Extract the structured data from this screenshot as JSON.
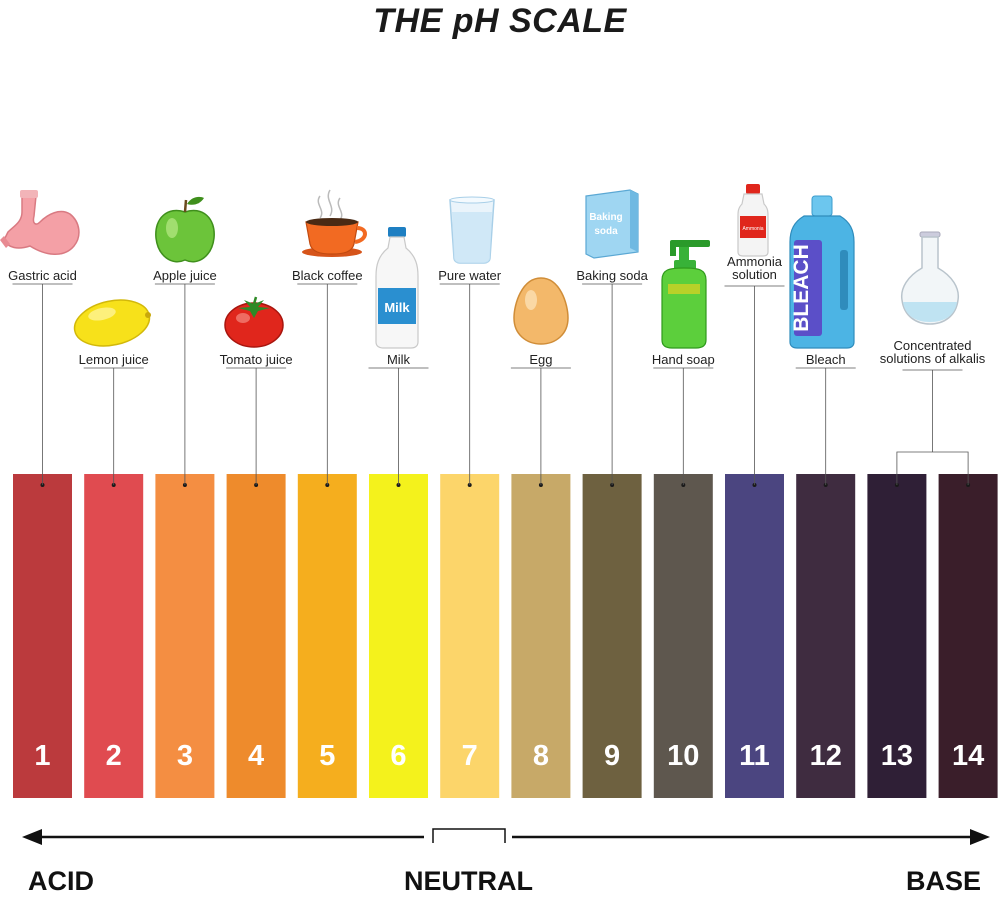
{
  "title": "THE pH SCALE",
  "chart_data": {
    "type": "bar",
    "categories": [
      "1",
      "2",
      "3",
      "4",
      "5",
      "6",
      "7",
      "8",
      "9",
      "10",
      "11",
      "12",
      "13",
      "14"
    ],
    "colors": [
      "#bb3a3d",
      "#e04b50",
      "#f48e42",
      "#ee8b2c",
      "#f5ae1e",
      "#f4f21c",
      "#fcd56a",
      "#c7a968",
      "#6e6140",
      "#5e574e",
      "#4b4580",
      "#3f2c40",
      "#2f1f36",
      "#3a1e2a"
    ],
    "examples": [
      {
        "label": "Gastric acid",
        "ph": [
          1
        ],
        "icon": "stomach-icon"
      },
      {
        "label": "Lemon juice",
        "ph": [
          2
        ],
        "icon": "lemon-icon"
      },
      {
        "label": "Apple juice",
        "ph": [
          3
        ],
        "icon": "apple-icon"
      },
      {
        "label": "Tomato juice",
        "ph": [
          4
        ],
        "icon": "tomato-icon"
      },
      {
        "label": "Black coffee",
        "ph": [
          5
        ],
        "icon": "coffee-cup-icon"
      },
      {
        "label": "Milk",
        "ph": [
          6
        ],
        "icon": "milk-bottle-icon"
      },
      {
        "label": "Pure water",
        "ph": [
          7
        ],
        "icon": "water-glass-icon"
      },
      {
        "label": "Egg",
        "ph": [
          8
        ],
        "icon": "egg-icon"
      },
      {
        "label": "Baking soda",
        "ph": [
          9
        ],
        "icon": "baking-soda-box-icon"
      },
      {
        "label": "Hand soap",
        "ph": [
          10
        ],
        "icon": "soap-dispenser-icon"
      },
      {
        "label": "Ammonia solution",
        "ph": [
          11
        ],
        "icon": "ammonia-bottle-icon"
      },
      {
        "label": "Bleach",
        "ph": [
          12
        ],
        "icon": "bleach-bottle-icon"
      },
      {
        "label": "Concentrated solutions of alkalis",
        "ph": [
          13,
          14
        ],
        "icon": "flask-icon"
      }
    ]
  },
  "icon_text": {
    "milk": "Milk",
    "baking_soda_1": "Baking",
    "baking_soda_2": "soda",
    "bleach": "BLEACH",
    "ammonia_1": "Ammonia",
    "ammonia_2": "solution"
  },
  "axis": {
    "acid": "ACID",
    "neutral": "NEUTRAL",
    "base": "BASE"
  }
}
